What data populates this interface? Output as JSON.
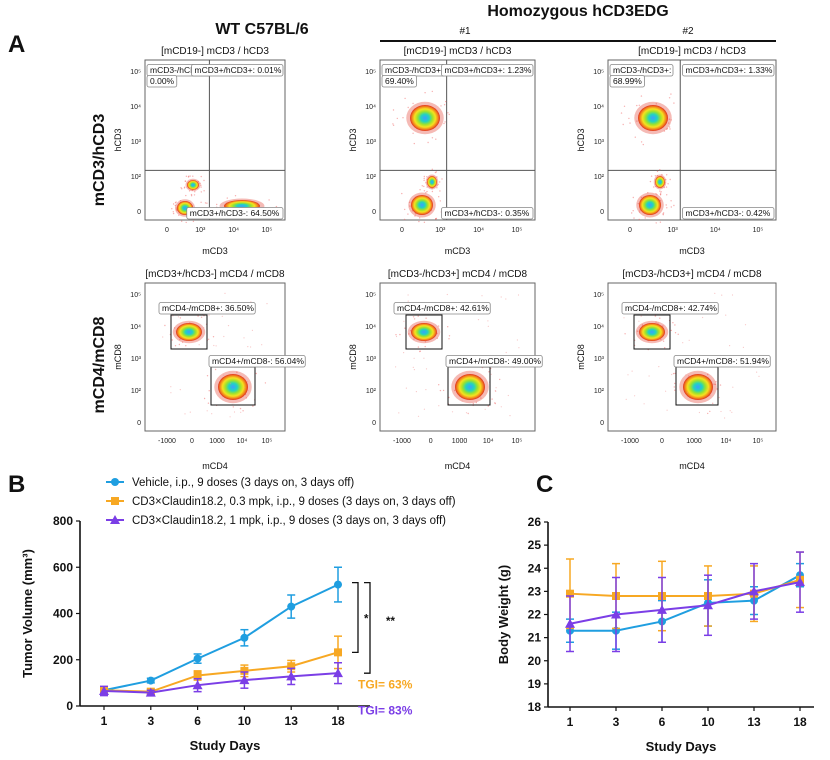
{
  "panel_letters": {
    "a": "A",
    "b": "B",
    "c": "C"
  },
  "panel_a": {
    "col_wt": "WT C57BL/6",
    "col_homo": "Homozygous hCD3EDG",
    "sub1": "#1",
    "sub2": "#2",
    "row1_label": "mCD3/hCD3",
    "row2_label": "mCD4/mCD8",
    "plots": [
      {
        "title": "[mCD19-] mCD3 / hCD3",
        "xlabel": "mCD3",
        "ylabel": "hCD3",
        "gates": [
          "mCD3-/hCD3+: 0.00%",
          "mCD3+/hCD3+: 0.01%",
          "mCD3+/hCD3-: 64.50%"
        ]
      },
      {
        "title": "[mCD19-] mCD3 / hCD3",
        "xlabel": "mCD3",
        "ylabel": "hCD3",
        "gates": [
          "mCD3-/hCD3+: 69.40%",
          "mCD3+/hCD3+: 1.23%",
          "mCD3+/hCD3-: 0.35%"
        ]
      },
      {
        "title": "[mCD19-] mCD3 / hCD3",
        "xlabel": "mCD3",
        "ylabel": "hCD3",
        "gates": [
          "mCD3-/hCD3+: 68.99%",
          "mCD3+/hCD3+: 1.33%",
          "mCD3+/hCD3-: 0.42%"
        ]
      },
      {
        "title": "[mCD3+/hCD3-] mCD4 / mCD8",
        "xlabel": "mCD4",
        "ylabel": "mCD8",
        "gates": [
          "mCD4-/mCD8+: 36.50%",
          "mCD4+/mCD8-: 56.04%"
        ]
      },
      {
        "title": "[mCD3-/hCD3+] mCD4 / mCD8",
        "xlabel": "mCD4",
        "ylabel": "mCD8",
        "gates": [
          "mCD4-/mCD8+: 42.61%",
          "mCD4+/mCD8-: 49.00%"
        ]
      },
      {
        "title": "[mCD3-/hCD3+] mCD4 / mCD8",
        "xlabel": "mCD4",
        "ylabel": "mCD8",
        "gates": [
          "mCD4-/mCD8+: 42.74%",
          "mCD4+/mCD8-: 51.94%"
        ]
      }
    ],
    "row1_yticks": [
      "10⁵",
      "10⁴",
      "10³",
      "10²",
      "0"
    ],
    "row1_xticks": [
      "0",
      "10³",
      "10⁴",
      "10⁵"
    ],
    "row2_yticks": [
      "10⁵",
      "10⁴",
      "10³",
      "10²",
      "0"
    ],
    "row2_xticks": [
      "-1000",
      "0",
      "1000",
      "10⁴",
      "10⁵"
    ]
  },
  "chart_data": [
    {
      "type": "line",
      "panel": "B",
      "xlabel": "Study Days",
      "ylabel": "Tumor Volume (mm³)",
      "categories": [
        "1",
        "3",
        "6",
        "10",
        "13",
        "18"
      ],
      "ylim": [
        0,
        800
      ],
      "yticks": [
        0,
        200,
        400,
        600,
        800
      ],
      "series": [
        {
          "name": "Vehicle, i.p., 9 doses (3 days on, 3 days off)",
          "color": "#1f9ee0",
          "marker": "circle",
          "values": [
            68,
            110,
            205,
            295,
            430,
            525
          ],
          "errors": [
            12,
            10,
            20,
            35,
            50,
            75
          ]
        },
        {
          "name": "CD3×Claudin18.2, 0.3 mpk, i.p., 9 doses (3 days on, 3 days off)",
          "color": "#f7a823",
          "marker": "square",
          "values": [
            68,
            62,
            132,
            152,
            172,
            232
          ],
          "errors": [
            15,
            10,
            20,
            25,
            25,
            70
          ]
        },
        {
          "name": "CD3×Claudin18.2, 1 mpk, i.p., 9 doses (3 days on, 3 days off)",
          "color": "#7b3ee6",
          "marker": "triangle",
          "values": [
            65,
            58,
            90,
            112,
            128,
            142
          ],
          "errors": [
            20,
            10,
            28,
            35,
            35,
            45
          ]
        }
      ],
      "annotations": {
        "sig1": "*",
        "sig2": "**",
        "tgi1": "TGI= 63%",
        "tgi2": "TGI= 83%"
      }
    },
    {
      "type": "line",
      "panel": "C",
      "xlabel": "Study Days",
      "ylabel": "Body Weight (g)",
      "categories": [
        "1",
        "3",
        "6",
        "10",
        "13",
        "18"
      ],
      "ylim": [
        18,
        26
      ],
      "yticks": [
        18,
        19,
        20,
        21,
        22,
        23,
        24,
        25,
        26
      ],
      "series": [
        {
          "name": "Vehicle",
          "color": "#1f9ee0",
          "marker": "circle",
          "values": [
            21.3,
            21.3,
            21.7,
            22.5,
            22.6,
            23.7
          ],
          "errors": [
            0.5,
            0.8,
            0.9,
            1.0,
            0.6,
            0.5
          ]
        },
        {
          "name": "CD3×Claudin18.2, 0.3 mpk",
          "color": "#f7a823",
          "marker": "square",
          "values": [
            22.9,
            22.8,
            22.8,
            22.8,
            22.9,
            23.5
          ],
          "errors": [
            1.5,
            1.4,
            1.5,
            1.3,
            1.2,
            1.2
          ]
        },
        {
          "name": "CD3×Claudin18.2, 1 mpk",
          "color": "#7b3ee6",
          "marker": "triangle",
          "values": [
            21.6,
            22.0,
            22.2,
            22.4,
            23.0,
            23.4
          ],
          "errors": [
            1.2,
            1.6,
            1.4,
            1.3,
            1.2,
            1.3
          ]
        }
      ]
    }
  ]
}
